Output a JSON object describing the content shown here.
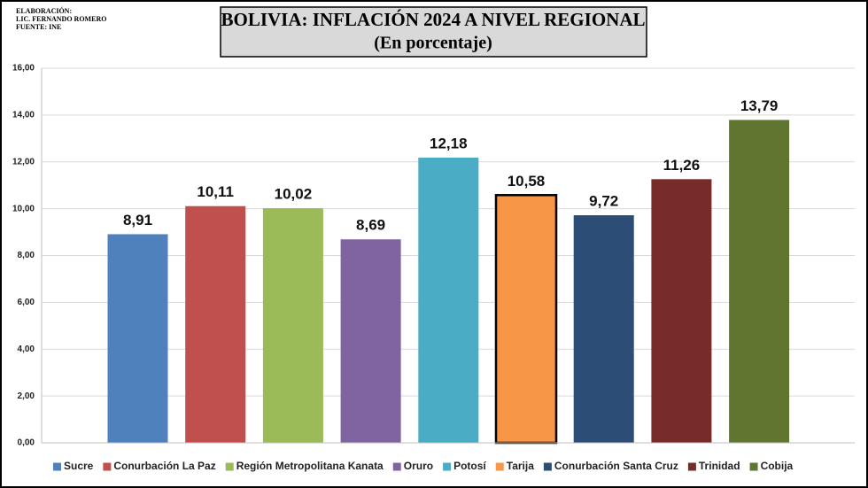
{
  "chart_data": {
    "type": "bar",
    "title": "BOLIVIA: INFLACIÓN 2024 A NIVEL REGIONAL",
    "subtitle": "(En porcentaje)",
    "annotations": [
      "ELABORACIÓN:",
      "LIC. FERNANDO ROMERO",
      "FUENTE: INE"
    ],
    "categories": [
      "Sucre",
      "Conurbación La Paz",
      "Región Metropolitana Kanata",
      "Oruro",
      "Potosí",
      "Tarija",
      "Conurbación Santa Cruz",
      "Trinidad",
      "Cobija"
    ],
    "values": [
      8.91,
      10.11,
      10.02,
      8.69,
      12.18,
      10.58,
      9.72,
      11.26,
      13.79
    ],
    "value_labels": [
      "8,91",
      "10,11",
      "10,02",
      "8,69",
      "12,18",
      "10,58",
      "9,72",
      "11,26",
      "13,79"
    ],
    "colors": [
      "#4f81bd",
      "#c0504d",
      "#9bbb59",
      "#8064a2",
      "#4bacc6",
      "#f79646",
      "#2c4d75",
      "#772c2a",
      "#5f7530"
    ],
    "highlight": 5,
    "ylim": [
      0,
      16
    ],
    "yticks": [
      {
        "value": 0,
        "label": "0,00"
      },
      {
        "value": 2,
        "label": "2,00"
      },
      {
        "value": 4,
        "label": "4,00"
      },
      {
        "value": 6,
        "label": "6,00"
      },
      {
        "value": 8,
        "label": "8,00"
      },
      {
        "value": 10,
        "label": "10,00"
      },
      {
        "value": 12,
        "label": "12,00"
      },
      {
        "value": 14,
        "label": "14,00"
      },
      {
        "value": 16,
        "label": "16,00"
      }
    ],
    "grid": true,
    "legend": "bottom"
  }
}
